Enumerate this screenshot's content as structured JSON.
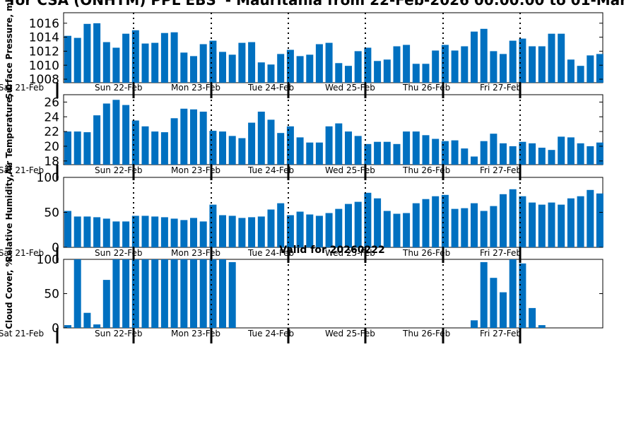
{
  "chart_data": {
    "title": "for CSA (ONHTM) PPL EBS' - Mauritania from 22-Feb-2026 00:00:00 to 01-Mar",
    "note": "Valid for 20260222",
    "bar_color": "#0070c0",
    "type": "bar",
    "days": [
      "Sat 21-Feb",
      "Sun 22-Feb",
      "Mon 23-Feb",
      "Tue 24-Feb",
      "Wed 25-Feb",
      "Thu 26-Feb",
      "Fri 27-Feb"
    ],
    "panels": [
      {
        "type": "bar",
        "ylabel": "Surface Pressure, mb",
        "ylim": [
          1007.5,
          1017.5
        ],
        "yticks": [
          "1008",
          "1010",
          "1012",
          "1014",
          "1016"
        ],
        "values": [
          1014.2,
          1013.9,
          1015.9,
          1016,
          1013.3,
          1012.5,
          1014.5,
          1015,
          1013.1,
          1013.2,
          1014.6,
          1014.7,
          1011.8,
          1011.3,
          1013,
          1013.5,
          1011.9,
          1011.5,
          1013.2,
          1013.3,
          1010.4,
          1010.1,
          1011.6,
          1012.2,
          1011.3,
          1011.5,
          1013,
          1013.2,
          1010.3,
          1009.9,
          1012,
          1012.5,
          1010.6,
          1010.8,
          1012.7,
          1012.9,
          1010.2,
          1010.2,
          1012.1,
          1012.9,
          1012.1,
          1012.7,
          1014.8,
          1015.2,
          1012,
          1011.6,
          1013.5,
          1013.8,
          1012.7,
          1012.7,
          1014.5,
          1014.5,
          1010.8,
          1009.9,
          1011.4,
          1011.6
        ]
      },
      {
        "type": "bar",
        "ylabel": "Air Temperature, C",
        "ylim": [
          17.5,
          27
        ],
        "yticks": [
          "18",
          "20",
          "22",
          "24",
          "26"
        ],
        "values": [
          22,
          22,
          21.9,
          24.2,
          25.8,
          26.3,
          25.6,
          23.5,
          22.7,
          22,
          21.9,
          23.8,
          25.1,
          25,
          24.7,
          22.1,
          22,
          21.4,
          21.1,
          23.2,
          24.7,
          23.6,
          21.8,
          22.7,
          21.2,
          20.5,
          20.5,
          22.7,
          23.1,
          22,
          21.4,
          20.3,
          20.6,
          20.6,
          20.3,
          22,
          22,
          21.5,
          21,
          20.7,
          20.8,
          19.7,
          18.6,
          20.7,
          21.7,
          20.4,
          20,
          20.6,
          20.4,
          19.8,
          19.5,
          21.3,
          21.2,
          20.4,
          20,
          20.5
        ]
      },
      {
        "type": "bar",
        "ylabel": "Relative Humidity, %",
        "ylim": [
          0,
          100
        ],
        "yticks": [
          "0",
          "50",
          "100"
        ],
        "values": [
          52,
          44,
          44,
          43,
          41,
          37,
          37,
          45,
          45,
          44,
          43,
          41,
          39,
          42,
          37,
          61,
          46,
          45,
          42,
          43,
          44,
          54,
          63,
          46,
          51,
          47,
          45,
          49,
          55,
          62,
          65,
          78,
          70,
          52,
          48,
          49,
          63,
          69,
          73,
          75,
          55,
          56,
          63,
          52,
          59,
          76,
          83,
          73,
          64,
          61,
          64,
          61,
          70,
          73,
          82,
          77
        ]
      },
      {
        "type": "bar",
        "ylabel": "Cloud Cover, %",
        "ylim": [
          0,
          100
        ],
        "yticks": [
          "0",
          "50",
          "100"
        ],
        "values": [
          4,
          100,
          22,
          5,
          70,
          100,
          100,
          100,
          100,
          100,
          100,
          100,
          100,
          100,
          100,
          100,
          100,
          96,
          0,
          0,
          0,
          0,
          0,
          0,
          0,
          0,
          0,
          0,
          0,
          0,
          0,
          0,
          0,
          0,
          0,
          0,
          0,
          0,
          0,
          0,
          0,
          0,
          11,
          96,
          73,
          52,
          100,
          94,
          29,
          4,
          0,
          0,
          0,
          0,
          0,
          0
        ]
      }
    ]
  }
}
